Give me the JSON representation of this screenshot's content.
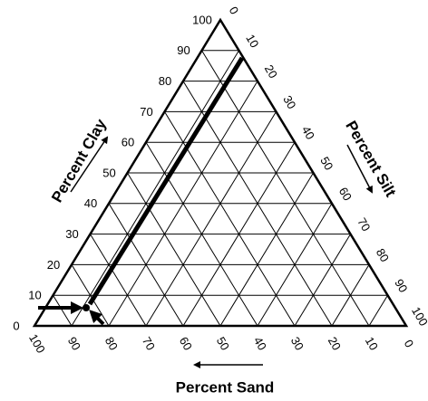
{
  "clay": {
    "title": "Percent Clay",
    "ticks": [
      0,
      10,
      20,
      30,
      40,
      50,
      60,
      70,
      80,
      90,
      100
    ]
  },
  "silt": {
    "title": "Percent Silt",
    "ticks": [
      0,
      10,
      20,
      30,
      40,
      50,
      60,
      70,
      80,
      90,
      100
    ]
  },
  "sand": {
    "title": "Percent Sand",
    "ticks": [
      100,
      90,
      80,
      70,
      60,
      50,
      40,
      30,
      20,
      10,
      0
    ]
  }
}
